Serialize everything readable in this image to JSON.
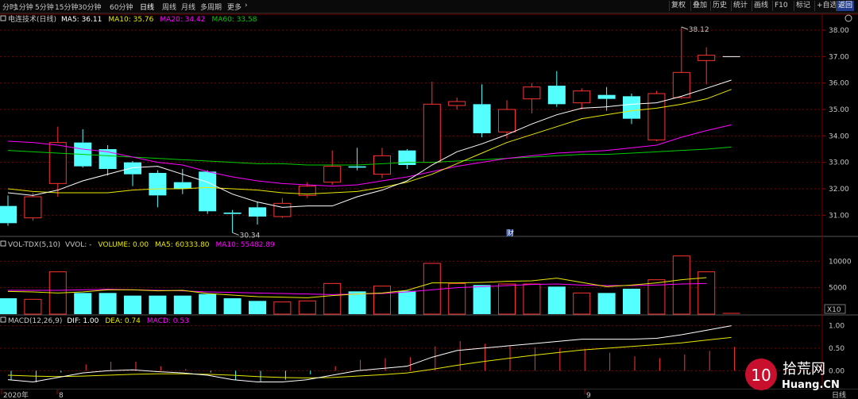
{
  "toolbar": {
    "left_items": [
      "分时",
      "1分钟",
      "5分钟",
      "15分钟",
      "30分钟",
      "60分钟",
      "日线",
      "周线",
      "月线",
      "多周期",
      "更多"
    ],
    "active_index": 6,
    "right_items": [
      "复权",
      "叠加",
      "历史",
      "统计",
      "画线",
      "F10",
      "标记",
      "+自选",
      "返回"
    ],
    "highlight_index": 8
  },
  "main_panel": {
    "title": "电连技术(日线)",
    "legend": [
      {
        "label": "MA5: 36.11",
        "color": "#ffffff"
      },
      {
        "label": "MA10: 35.76",
        "color": "#e8e800"
      },
      {
        "label": "MA20: 34.42",
        "color": "#ff00ff"
      },
      {
        "label": "MA60: 33.58",
        "color": "#00cc00"
      }
    ],
    "axis_labels": [
      "38.00",
      "37.00",
      "36.00",
      "35.00",
      "34.00",
      "33.00",
      "32.00",
      "31.00"
    ],
    "high_label": "38.12",
    "low_label": "30.34",
    "marker": "财"
  },
  "vol_panel": {
    "title": "VOL-TDX(5,10)",
    "legend": [
      {
        "label": "VVOL: -",
        "color": "#c8c8c8"
      },
      {
        "label": "VOLUME: 0.00",
        "color": "#e8e800"
      },
      {
        "label": "MA5: 60333.80",
        "color": "#e8e800"
      },
      {
        "label": "MA10: 55482.89",
        "color": "#ff00ff"
      }
    ],
    "axis_labels": [
      "10000",
      "5000"
    ],
    "unit": "X10"
  },
  "macd_panel": {
    "title": "MACD(12,26,9)",
    "legend": [
      {
        "label": "DIF: 1.00",
        "color": "#ffffff"
      },
      {
        "label": "DEA: 0.74",
        "color": "#e8e800"
      },
      {
        "label": "MACD: 0.53",
        "color": "#ff00ff"
      }
    ],
    "axis_labels": [
      "1.00",
      "0.50",
      "0.00"
    ]
  },
  "time_axis": {
    "labels": [
      "2020年",
      "8",
      "9"
    ],
    "period": "日线"
  },
  "watermark": {
    "logo_text": "10",
    "brand": "拾荒网",
    "url": "Huang.CN"
  },
  "colors": {
    "up": "#ff3232",
    "down": "#54ffff",
    "ma5": "#ffffff",
    "ma10": "#e8e800",
    "ma20": "#ff00ff",
    "ma60": "#00cc00",
    "grid": "#7a0000",
    "text": "#c8c8c8"
  },
  "chart_data": {
    "type": "candlestick",
    "candles": [
      {
        "o": 31.35,
        "h": 31.75,
        "l": 30.6,
        "c": 30.7
      },
      {
        "o": 30.9,
        "h": 31.85,
        "l": 30.8,
        "c": 31.7
      },
      {
        "o": 32.2,
        "h": 34.35,
        "l": 31.7,
        "c": 33.75
      },
      {
        "o": 33.75,
        "h": 34.25,
        "l": 32.8,
        "c": 32.85
      },
      {
        "o": 33.5,
        "h": 33.65,
        "l": 32.5,
        "c": 32.75
      },
      {
        "o": 33.0,
        "h": 33.05,
        "l": 32.1,
        "c": 32.55
      },
      {
        "o": 32.6,
        "h": 32.7,
        "l": 31.3,
        "c": 31.75
      },
      {
        "o": 32.25,
        "h": 32.75,
        "l": 31.8,
        "c": 32.0
      },
      {
        "o": 32.65,
        "h": 32.7,
        "l": 31.05,
        "c": 31.15
      },
      {
        "o": 31.1,
        "h": 31.2,
        "l": 30.34,
        "c": 31.05
      },
      {
        "o": 31.3,
        "h": 31.5,
        "l": 30.65,
        "c": 30.95
      },
      {
        "o": 30.95,
        "h": 31.65,
        "l": 30.9,
        "c": 31.45
      },
      {
        "o": 31.75,
        "h": 32.25,
        "l": 31.65,
        "c": 32.1
      },
      {
        "o": 32.25,
        "h": 33.45,
        "l": 32.15,
        "c": 32.85
      },
      {
        "o": 32.85,
        "h": 33.55,
        "l": 32.7,
        "c": 32.8
      },
      {
        "o": 32.55,
        "h": 33.55,
        "l": 32.4,
        "c": 33.25
      },
      {
        "o": 33.45,
        "h": 33.5,
        "l": 32.75,
        "c": 32.9
      },
      {
        "o": 33.0,
        "h": 36.05,
        "l": 33.0,
        "c": 35.2
      },
      {
        "o": 35.15,
        "h": 35.45,
        "l": 35.0,
        "c": 35.3
      },
      {
        "o": 35.2,
        "h": 35.95,
        "l": 33.95,
        "c": 34.1
      },
      {
        "o": 34.15,
        "h": 35.35,
        "l": 33.9,
        "c": 35.0
      },
      {
        "o": 35.4,
        "h": 36.0,
        "l": 34.85,
        "c": 35.85
      },
      {
        "o": 35.9,
        "h": 36.45,
        "l": 35.1,
        "c": 35.2
      },
      {
        "o": 35.25,
        "h": 35.8,
        "l": 35.0,
        "c": 35.7
      },
      {
        "o": 35.55,
        "h": 35.85,
        "l": 34.95,
        "c": 35.4
      },
      {
        "o": 35.5,
        "h": 35.6,
        "l": 34.45,
        "c": 34.65
      },
      {
        "o": 33.85,
        "h": 35.7,
        "l": 33.8,
        "c": 35.6
      },
      {
        "o": 35.45,
        "h": 38.12,
        "l": 35.4,
        "c": 36.4
      },
      {
        "o": 36.85,
        "h": 37.35,
        "l": 35.95,
        "c": 37.05
      },
      {
        "o": 37.0,
        "h": 37.0,
        "l": 37.0,
        "c": 37.0
      }
    ],
    "ma5": [
      31.85,
      31.75,
      31.95,
      32.3,
      32.55,
      32.8,
      32.85,
      32.55,
      32.25,
      31.8,
      31.5,
      31.3,
      31.35,
      31.35,
      31.7,
      31.95,
      32.3,
      32.9,
      33.4,
      33.7,
      34.05,
      34.45,
      34.8,
      35.05,
      35.1,
      35.2,
      35.25,
      35.5,
      35.8,
      36.11
    ],
    "ma10": [
      32.0,
      31.9,
      31.85,
      31.85,
      31.85,
      31.95,
      32.0,
      32.0,
      32.05,
      32.0,
      31.95,
      31.85,
      31.8,
      31.85,
      31.9,
      32.05,
      32.25,
      32.55,
      32.95,
      33.35,
      33.75,
      34.05,
      34.35,
      34.65,
      34.8,
      34.95,
      35.05,
      35.2,
      35.4,
      35.76
    ],
    "ma20": [
      33.8,
      33.75,
      33.65,
      33.5,
      33.4,
      33.2,
      33.0,
      32.9,
      32.65,
      32.45,
      32.3,
      32.2,
      32.15,
      32.1,
      32.15,
      32.3,
      32.45,
      32.65,
      32.85,
      33.0,
      33.15,
      33.25,
      33.35,
      33.4,
      33.45,
      33.55,
      33.65,
      33.95,
      34.2,
      34.42
    ],
    "ma60": [
      33.45,
      33.4,
      33.35,
      33.3,
      33.25,
      33.2,
      33.15,
      33.1,
      33.05,
      33.0,
      32.95,
      32.95,
      32.9,
      32.9,
      32.9,
      32.95,
      33.0,
      33.0,
      33.05,
      33.1,
      33.15,
      33.2,
      33.25,
      33.3,
      33.3,
      33.35,
      33.4,
      33.45,
      33.5,
      33.58
    ],
    "volume": [
      3000,
      2800,
      8000,
      4000,
      4000,
      3500,
      3500,
      3500,
      3800,
      3000,
      2500,
      2300,
      2500,
      5800,
      4300,
      5300,
      4400,
      9600,
      5800,
      5500,
      5700,
      5700,
      5200,
      4000,
      4000,
      4800,
      6500,
      11000,
      8000,
      0
    ],
    "vol_ma5": [
      4300,
      4200,
      4000,
      4200,
      4600,
      4600,
      4400,
      4500,
      3900,
      3600,
      3300,
      3200,
      3100,
      3500,
      3800,
      4000,
      4500,
      5900,
      5900,
      6000,
      6200,
      6300,
      6800,
      6000,
      5200,
      5500,
      5900,
      6500,
      6900,
      6033
    ],
    "vol_ma10": [
      4500,
      4500,
      4500,
      4600,
      4700,
      4600,
      4500,
      4400,
      4200,
      4100,
      4000,
      3900,
      3800,
      3700,
      3800,
      3900,
      4200,
      4600,
      5000,
      5200,
      5400,
      5600,
      5700,
      5500,
      5400,
      5400,
      5500,
      5700,
      5800,
      5548
    ],
    "dif": [
      -0.2,
      -0.25,
      -0.15,
      -0.05,
      0.0,
      0.02,
      -0.02,
      -0.05,
      -0.1,
      -0.2,
      -0.25,
      -0.25,
      -0.2,
      -0.1,
      0.0,
      0.05,
      0.1,
      0.3,
      0.45,
      0.5,
      0.55,
      0.6,
      0.65,
      0.7,
      0.7,
      0.7,
      0.72,
      0.8,
      0.9,
      1.0
    ],
    "dea": [
      -0.1,
      -0.12,
      -0.13,
      -0.12,
      -0.1,
      -0.08,
      -0.07,
      -0.07,
      -0.08,
      -0.1,
      -0.13,
      -0.15,
      -0.16,
      -0.15,
      -0.12,
      -0.09,
      -0.05,
      0.03,
      0.12,
      0.2,
      0.27,
      0.34,
      0.4,
      0.46,
      0.5,
      0.54,
      0.58,
      0.62,
      0.68,
      0.74
    ],
    "macd": [
      -0.2,
      -0.26,
      -0.04,
      0.14,
      0.2,
      0.2,
      0.1,
      0.04,
      -0.04,
      -0.2,
      -0.24,
      -0.2,
      -0.08,
      0.1,
      0.24,
      0.28,
      0.3,
      0.54,
      0.66,
      0.6,
      0.56,
      0.52,
      0.5,
      0.48,
      0.4,
      0.32,
      0.28,
      0.36,
      0.44,
      0.53
    ],
    "y_range": [
      30.2,
      38.3
    ],
    "vol_range": [
      0,
      12000
    ],
    "macd_range": [
      -0.4,
      1.1
    ]
  }
}
